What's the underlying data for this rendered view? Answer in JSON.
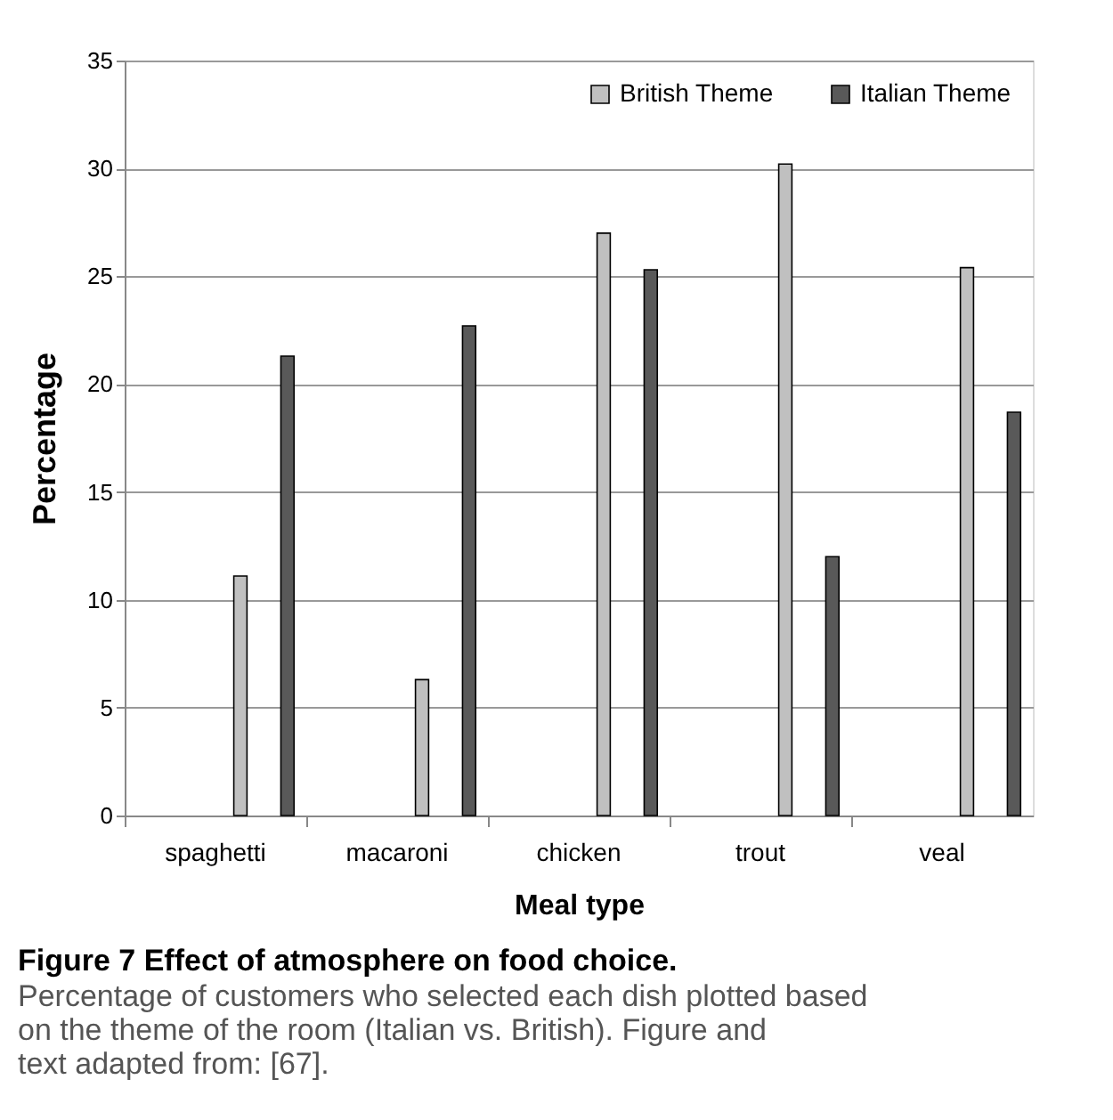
{
  "chart_data": {
    "type": "bar",
    "title": "Figure 7 Effect of atmosphere on food choice.",
    "subtitle": "Percentage of customers who selected each dish plotted based on the theme of the room (Italian vs. British). Figure and text adapted from: [67].",
    "xlabel": "Meal type",
    "ylabel": "Percentage",
    "categories": [
      "spaghetti",
      "macaroni",
      "chicken",
      "trout",
      "veal"
    ],
    "series": [
      {
        "name": "British Theme",
        "color": "#c0c0c0",
        "values": [
          11.1,
          6.3,
          27.0,
          30.2,
          25.4
        ]
      },
      {
        "name": "Italian Theme",
        "color": "#595959",
        "values": [
          21.3,
          22.7,
          25.3,
          12.0,
          18.7
        ]
      }
    ],
    "ylim": [
      0,
      35
    ],
    "yticks": [
      0,
      5,
      10,
      15,
      20,
      25,
      30,
      35
    ],
    "grid": "y",
    "legend": "top right"
  }
}
